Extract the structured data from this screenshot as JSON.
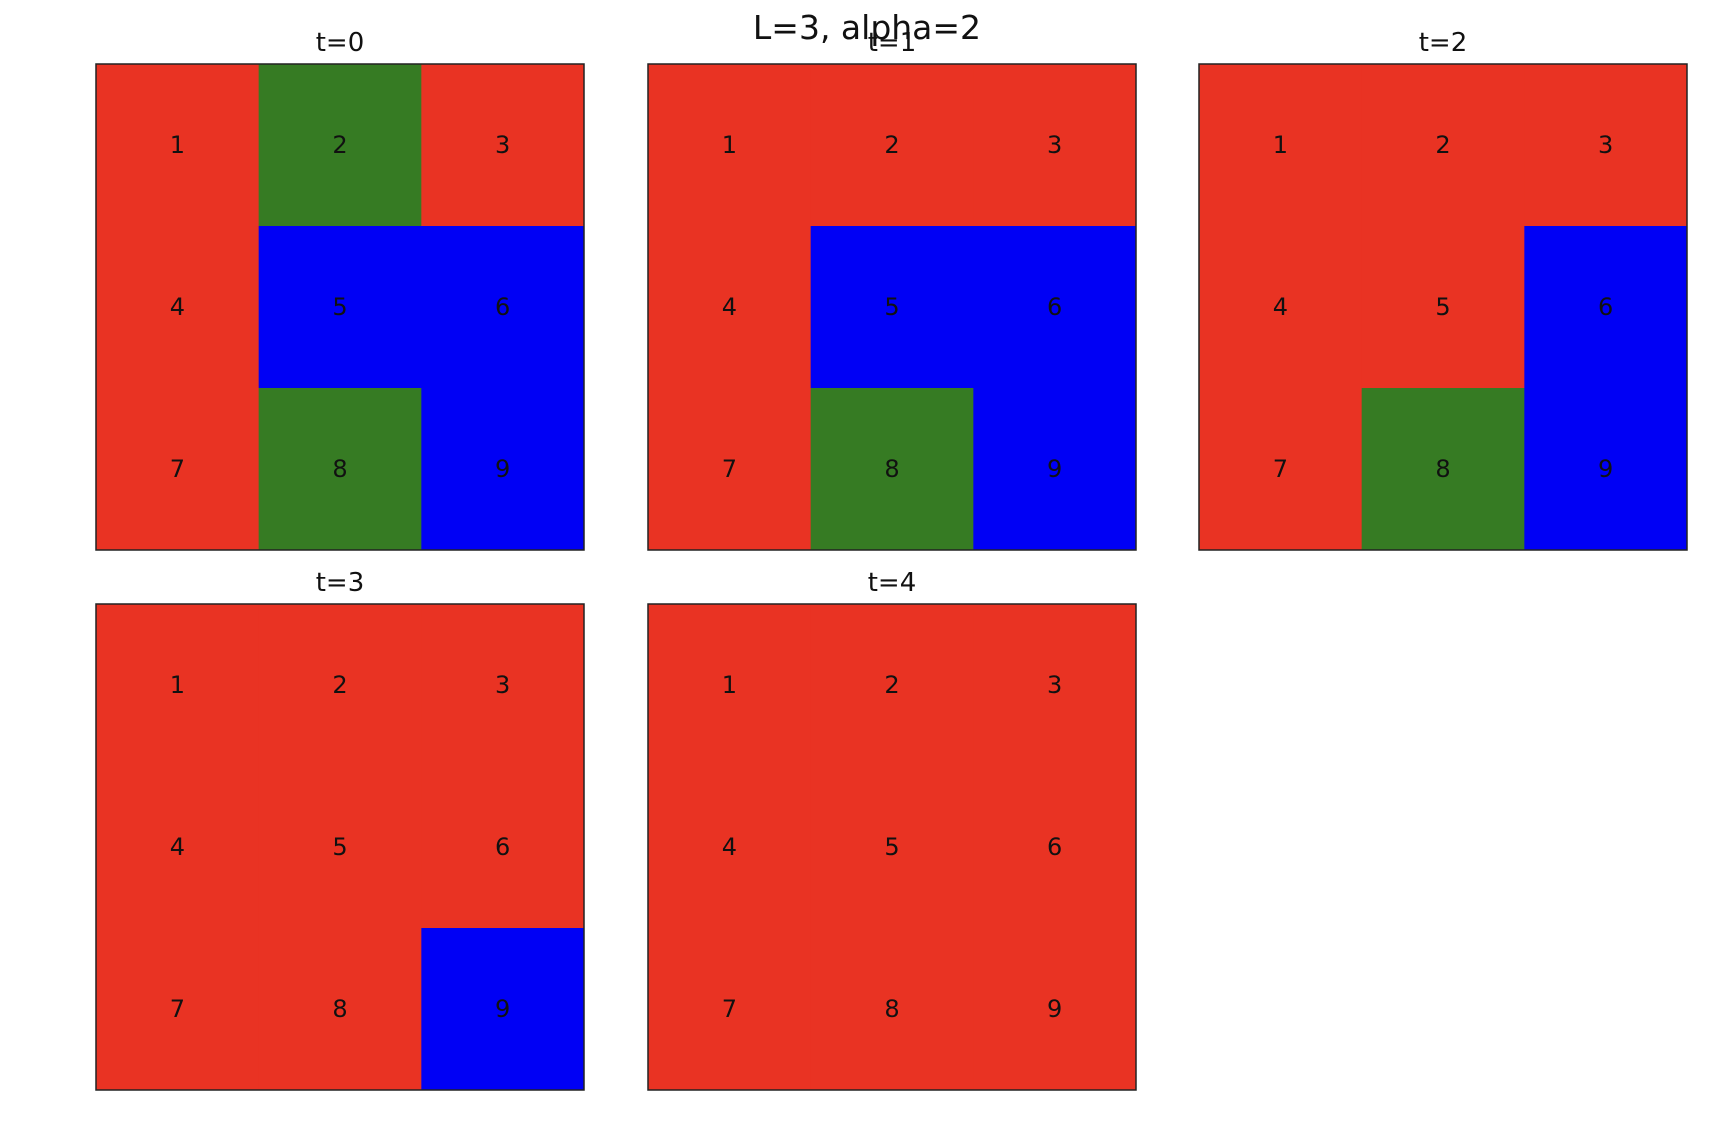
{
  "chart_data": {
    "type": "heatmap",
    "title": "L=3, alpha=2",
    "grid_size": 3,
    "cell_labels": [
      [
        "1",
        "2",
        "3"
      ],
      [
        "4",
        "5",
        "6"
      ],
      [
        "7",
        "8",
        "9"
      ]
    ],
    "state_colors": {
      "R": "#e93323",
      "G": "#367b23",
      "B": "#0000f5"
    },
    "panels": [
      {
        "title": "t=0",
        "states": [
          [
            "R",
            "G",
            "R"
          ],
          [
            "R",
            "B",
            "B"
          ],
          [
            "R",
            "G",
            "B"
          ]
        ]
      },
      {
        "title": "t=1",
        "states": [
          [
            "R",
            "R",
            "R"
          ],
          [
            "R",
            "B",
            "B"
          ],
          [
            "R",
            "G",
            "B"
          ]
        ]
      },
      {
        "title": "t=2",
        "states": [
          [
            "R",
            "R",
            "R"
          ],
          [
            "R",
            "R",
            "B"
          ],
          [
            "R",
            "G",
            "B"
          ]
        ]
      },
      {
        "title": "t=3",
        "states": [
          [
            "R",
            "R",
            "R"
          ],
          [
            "R",
            "R",
            "R"
          ],
          [
            "R",
            "R",
            "B"
          ]
        ]
      },
      {
        "title": "t=4",
        "states": [
          [
            "R",
            "R",
            "R"
          ],
          [
            "R",
            "R",
            "R"
          ],
          [
            "R",
            "R",
            "R"
          ]
        ]
      }
    ]
  }
}
